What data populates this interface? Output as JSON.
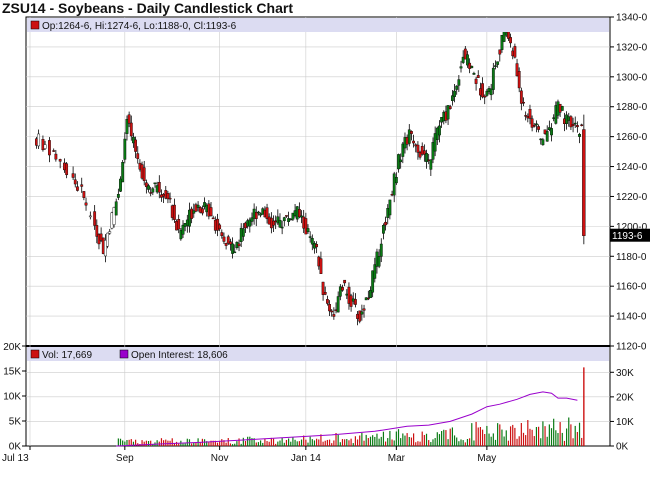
{
  "title": "ZSU14 - Soybeans - Daily Candlestick Chart",
  "colors": {
    "up": "#0a7a14",
    "down": "#cc1111",
    "oi_line": "#9900cc",
    "vol": "#cc1111",
    "legend_bg": "#dcdcf2",
    "grid": "#cccccc"
  },
  "price_legend": "Op:1264-6, Hi:1274-6, Lo:1188-0, Cl:1193-6",
  "last_price_label": "1193-6",
  "vol_legend": {
    "vol": "Vol: 17,669",
    "oi": "Open Interest: 18,606"
  },
  "x_labels": [
    "Jul 13",
    "Sep",
    "Nov",
    "Jan 14",
    "Mar",
    "May"
  ],
  "chart_data": {
    "type": "candlestick",
    "title": "ZSU14 - Soybeans - Daily Candlestick Chart",
    "price_axis": {
      "ylim": [
        1120,
        1340
      ],
      "ticks": [
        1120,
        1140,
        1160,
        1180,
        1200,
        1220,
        1240,
        1260,
        1280,
        1300,
        1320,
        1340
      ],
      "tick_labels": [
        "1120-0",
        "1140-0",
        "1160-0",
        "1180-0",
        "1200-0",
        "1220-0",
        "1240-0",
        "1260-0",
        "1280-0",
        "1300-0",
        "1320-0",
        "1340-0"
      ],
      "last_close": 1193.75
    },
    "volume_axis": {
      "right_ticks": [
        0,
        10000,
        20000,
        30000
      ],
      "right_labels": [
        "0K",
        "10K",
        "20K",
        "30K"
      ],
      "left_ticks": [
        0,
        5000,
        10000,
        15000,
        20000
      ],
      "left_labels": [
        "0K",
        "5K",
        "10K",
        "15K",
        "20K"
      ]
    },
    "x_axis": {
      "labels": [
        "Jul 13",
        "Sep",
        "Nov",
        "Jan 14",
        "Mar",
        "May"
      ],
      "label_day_index": [
        0,
        44,
        88,
        128,
        170,
        212
      ],
      "total_days": 258
    },
    "last_bar": {
      "open": 1264.75,
      "high": 1274.75,
      "low": 1188.0,
      "close": 1193.75,
      "volume": 17669,
      "open_interest": 18606
    },
    "price_path": [
      [
        5,
        1258
      ],
      [
        15,
        1245
      ],
      [
        25,
        1222
      ],
      [
        30,
        1205
      ],
      [
        35,
        1185
      ],
      [
        42,
        1222
      ],
      [
        46,
        1270
      ],
      [
        50,
        1250
      ],
      [
        55,
        1228
      ],
      [
        60,
        1225
      ],
      [
        65,
        1220
      ],
      [
        70,
        1195
      ],
      [
        78,
        1215
      ],
      [
        85,
        1210
      ],
      [
        90,
        1190
      ],
      [
        96,
        1185
      ],
      [
        102,
        1205
      ],
      [
        108,
        1212
      ],
      [
        114,
        1200
      ],
      [
        120,
        1205
      ],
      [
        125,
        1210
      ],
      [
        130,
        1195
      ],
      [
        134,
        1182
      ],
      [
        138,
        1150
      ],
      [
        142,
        1142
      ],
      [
        146,
        1160
      ],
      [
        150,
        1150
      ],
      [
        154,
        1138
      ],
      [
        158,
        1155
      ],
      [
        162,
        1178
      ],
      [
        166,
        1205
      ],
      [
        170,
        1232
      ],
      [
        174,
        1255
      ],
      [
        178,
        1262
      ],
      [
        182,
        1250
      ],
      [
        186,
        1242
      ],
      [
        190,
        1265
      ],
      [
        194,
        1275
      ],
      [
        198,
        1290
      ],
      [
        202,
        1315
      ],
      [
        206,
        1305
      ],
      [
        210,
        1292
      ],
      [
        214,
        1290
      ],
      [
        218,
        1315
      ],
      [
        222,
        1332
      ],
      [
        226,
        1310
      ],
      [
        230,
        1278
      ],
      [
        234,
        1270
      ],
      [
        238,
        1258
      ],
      [
        242,
        1265
      ],
      [
        246,
        1282
      ],
      [
        250,
        1270
      ],
      [
        254,
        1265
      ]
    ],
    "oi_path": [
      [
        40,
        0
      ],
      [
        60,
        800
      ],
      [
        80,
        1500
      ],
      [
        100,
        2500
      ],
      [
        120,
        3500
      ],
      [
        140,
        4500
      ],
      [
        160,
        6000
      ],
      [
        175,
        8000
      ],
      [
        185,
        8500
      ],
      [
        195,
        10000
      ],
      [
        205,
        13000
      ],
      [
        212,
        16000
      ],
      [
        218,
        17000
      ],
      [
        226,
        19000
      ],
      [
        232,
        21000
      ],
      [
        238,
        22000
      ],
      [
        242,
        21500
      ],
      [
        245,
        19500
      ],
      [
        249,
        19500
      ],
      [
        254,
        18606
      ]
    ]
  }
}
